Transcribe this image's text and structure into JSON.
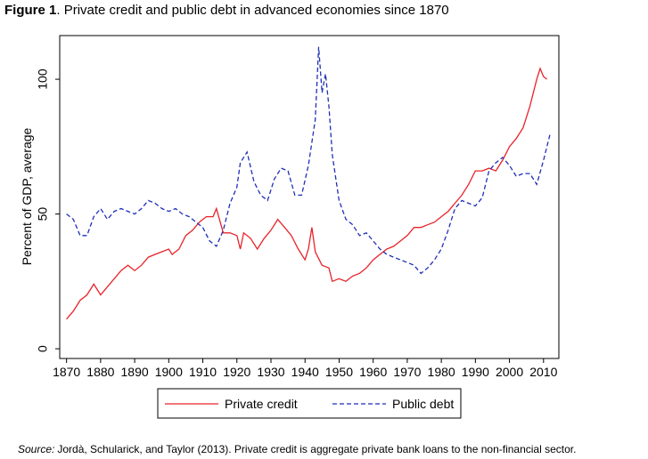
{
  "chart_data": {
    "type": "line",
    "figure_label": "Figure 1",
    "title": ". Private credit and public debt in advanced economies since 1870",
    "ylabel": "Percent of GDP, average",
    "source_label": "Source:",
    "source": "Jordà, Schularick, and Taylor (2013). Private credit is aggregate private bank loans to the non-financial sector.",
    "xlim": [
      1868,
      2014.5
    ],
    "ylim": [
      -3.6,
      116.2
    ],
    "xticks": [
      1870,
      1880,
      1890,
      1900,
      1910,
      1920,
      1930,
      1940,
      1950,
      1960,
      1970,
      1980,
      1990,
      2000,
      2010
    ],
    "yticks": [
      0,
      50,
      100
    ],
    "series": [
      {
        "name": "Private credit",
        "color": "#e8232a",
        "dash": false,
        "x": [
          1870,
          1872,
          1874,
          1876,
          1878,
          1880,
          1882,
          1884,
          1886,
          1888,
          1890,
          1892,
          1894,
          1896,
          1898,
          1900,
          1901,
          1903,
          1905,
          1907,
          1909,
          1911,
          1913,
          1914,
          1916,
          1918,
          1920,
          1921,
          1922,
          1924,
          1926,
          1928,
          1930,
          1932,
          1934,
          1936,
          1938,
          1940,
          1941,
          1942,
          1943,
          1945,
          1947,
          1948,
          1950,
          1952,
          1954,
          1956,
          1958,
          1960,
          1962,
          1964,
          1966,
          1968,
          1970,
          1972,
          1974,
          1976,
          1978,
          1980,
          1982,
          1984,
          1986,
          1988,
          1990,
          1992,
          1994,
          1996,
          1998,
          2000,
          2002,
          2004,
          2006,
          2008,
          2009,
          2010,
          2011
        ],
        "values": [
          11,
          14,
          18,
          20,
          24,
          20,
          23,
          26,
          29,
          31,
          29,
          31,
          34,
          35,
          36,
          37,
          35,
          37,
          42,
          44,
          47,
          49,
          49,
          52,
          43,
          43,
          42,
          37,
          43,
          41,
          37,
          41,
          44,
          48,
          45,
          42,
          37,
          33,
          37,
          45,
          36,
          31,
          30,
          25,
          26,
          25,
          27,
          28,
          30,
          33,
          35,
          37,
          38,
          40,
          42,
          45,
          45,
          46,
          47,
          49,
          51,
          54,
          57,
          61,
          66,
          66,
          67,
          66,
          70,
          75,
          78,
          82,
          90,
          100,
          104,
          101,
          100
        ]
      },
      {
        "name": "Public debt",
        "color": "#1f2fb8",
        "dash": true,
        "x": [
          1870,
          1872,
          1874,
          1876,
          1878,
          1880,
          1882,
          1884,
          1886,
          1888,
          1890,
          1892,
          1894,
          1896,
          1898,
          1900,
          1902,
          1904,
          1906,
          1908,
          1910,
          1912,
          1914,
          1916,
          1918,
          1920,
          1921,
          1923,
          1925,
          1927,
          1929,
          1931,
          1933,
          1935,
          1937,
          1939,
          1941,
          1943,
          1944,
          1945,
          1946,
          1947,
          1948,
          1950,
          1952,
          1954,
          1956,
          1958,
          1960,
          1962,
          1964,
          1966,
          1968,
          1970,
          1972,
          1974,
          1976,
          1978,
          1980,
          1982,
          1984,
          1986,
          1988,
          1990,
          1992,
          1994,
          1996,
          1998,
          2000,
          2002,
          2004,
          2006,
          2008,
          2010,
          2012
        ],
        "values": [
          50,
          48,
          42,
          42,
          49,
          52,
          48,
          51,
          52,
          51,
          50,
          52,
          55,
          54,
          52,
          51,
          52,
          50,
          49,
          47,
          45,
          40,
          38,
          44,
          54,
          60,
          69,
          73,
          62,
          57,
          55,
          63,
          67,
          66,
          57,
          57,
          68,
          85,
          112,
          95,
          102,
          90,
          72,
          55,
          48,
          46,
          42,
          43,
          40,
          37,
          35,
          34,
          33,
          32,
          31,
          28,
          30,
          33,
          37,
          44,
          52,
          55,
          54,
          53,
          56,
          66,
          69,
          71,
          68,
          64,
          65,
          65,
          61,
          70,
          80
        ]
      }
    ]
  }
}
